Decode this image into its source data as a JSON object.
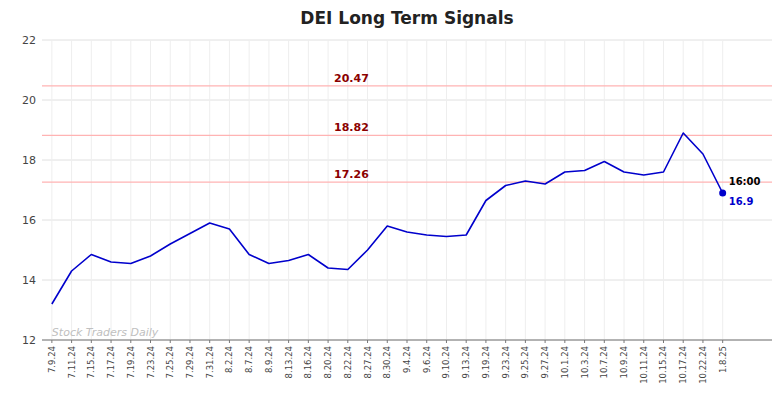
{
  "chart_data": {
    "type": "line",
    "title": "DEI Long Term Signals",
    "categories": [
      "7.9.24",
      "7.11.24",
      "7.15.24",
      "7.17.24",
      "7.19.24",
      "7.23.24",
      "7.25.24",
      "7.29.24",
      "7.31.24",
      "8.2.24",
      "8.7.24",
      "8.9.24",
      "8.13.24",
      "8.16.24",
      "8.20.24",
      "8.22.24",
      "8.27.24",
      "8.30.24",
      "9.4.24",
      "9.6.24",
      "9.10.24",
      "9.13.24",
      "9.19.24",
      "9.23.24",
      "9.25.24",
      "9.27.24",
      "10.1.24",
      "10.3.24",
      "10.7.24",
      "10.9.24",
      "10.11.24",
      "10.15.24",
      "10.17.24",
      "10.22.24",
      "1.8.25"
    ],
    "values": [
      13.2,
      14.3,
      14.85,
      14.6,
      14.55,
      14.8,
      15.2,
      15.55,
      15.9,
      15.7,
      14.85,
      14.55,
      14.65,
      14.85,
      14.4,
      14.35,
      15.0,
      15.8,
      15.6,
      15.5,
      15.45,
      15.5,
      16.65,
      17.15,
      17.3,
      17.2,
      17.6,
      17.65,
      17.95,
      17.6,
      17.5,
      17.6,
      18.9,
      18.2,
      16.9
    ],
    "color": "#0000cc",
    "ylim": [
      12,
      22
    ],
    "yticks": [
      12,
      14,
      16,
      18,
      20,
      22
    ],
    "grid": true,
    "hlines": {
      "values": [
        20.47,
        18.82,
        17.26
      ],
      "labels": [
        "20.47",
        "18.82",
        "17.26"
      ],
      "color": "#ffb3b3",
      "label_color": "#8b0000"
    },
    "annotations": [
      "16:00",
      "16.9"
    ],
    "watermark": "Stock Traders Daily"
  }
}
